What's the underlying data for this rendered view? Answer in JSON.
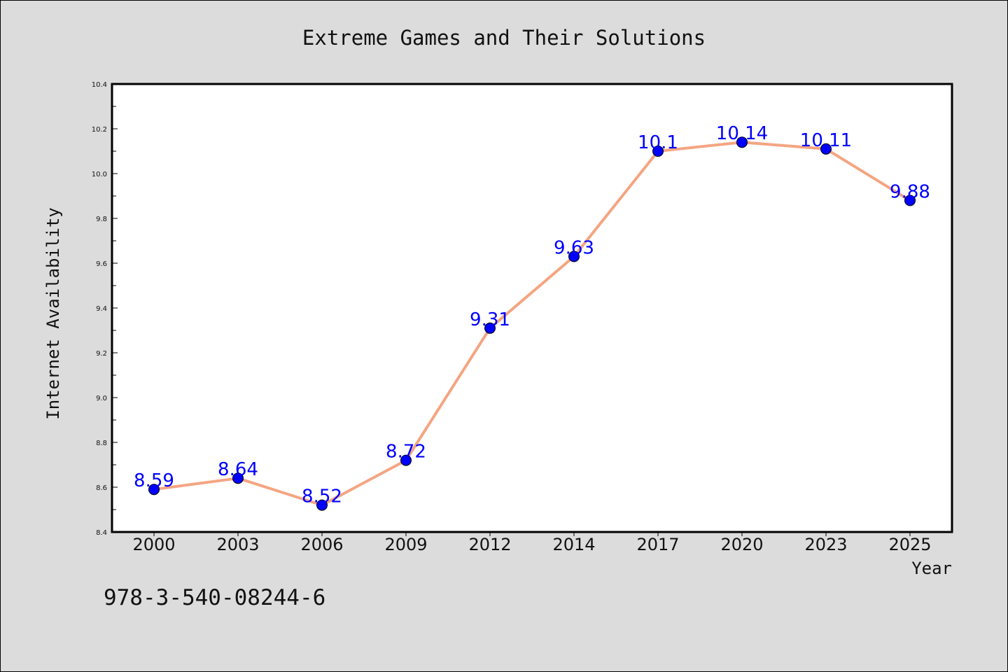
{
  "chart_data": {
    "type": "line",
    "title": "Extreme Games and Their Solutions",
    "xlabel": "Year",
    "ylabel": "Internet Availability",
    "categories": [
      "2000",
      "2003",
      "2006",
      "2009",
      "2012",
      "2014",
      "2017",
      "2020",
      "2023",
      "2025"
    ],
    "series": [
      {
        "values": [
          8.59,
          8.64,
          8.52,
          8.72,
          9.31,
          9.63,
          10.1,
          10.14,
          10.11,
          9.88
        ],
        "labels": [
          "8.59",
          "8.64",
          "8.52",
          "8.72",
          "9.31",
          "9.63",
          "10.1",
          "10.14",
          "10.11",
          "9.88"
        ],
        "line_color": "#f4a582",
        "marker_color": "#0000ff",
        "label_color": "#0000ff"
      }
    ],
    "ylim": [
      8.4,
      10.4
    ],
    "yticks": [
      "8.4",
      "8.6",
      "8.8",
      "9.0",
      "9.2",
      "9.4",
      "9.6",
      "9.8",
      "10.0",
      "10.2",
      "10.4"
    ],
    "grid": false,
    "legend": "none"
  },
  "annotation": "978-3-540-08244-6",
  "colors": {
    "background": "#dcdcdc",
    "plot_background": "#ffffff",
    "axis": "#000000"
  }
}
